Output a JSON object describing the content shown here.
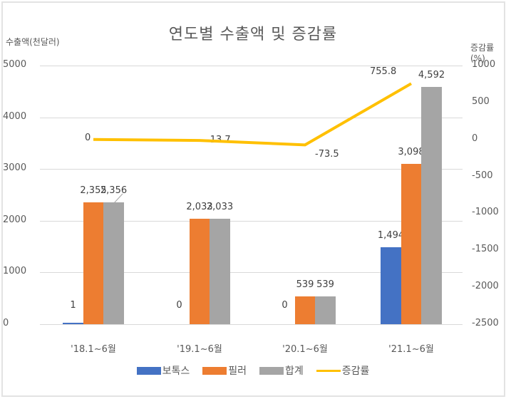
{
  "chart_data": {
    "type": "bar",
    "combo": "bar + line (secondary axis)",
    "title": "연도별 수출액 및 증감률",
    "xlabel": "",
    "ylabel": "수출액(천달러)",
    "y2label": "증감률(%)",
    "ylim": [
      0,
      5000
    ],
    "y2lim": [
      -2500,
      1000
    ],
    "yticks": [
      "5000",
      "4000",
      "3000",
      "2000",
      "1000",
      "0"
    ],
    "y2ticks": [
      "1000",
      "500",
      "0",
      "-500",
      "-1000",
      "-1500",
      "-2000",
      "-2500"
    ],
    "grid": true,
    "legend_position": "bottom",
    "categories": [
      "'18.1~6월",
      "'19.1~6월",
      "'20.1~6월",
      "'21.1~6월"
    ],
    "series": [
      {
        "name": "보톡스",
        "type": "bar",
        "color": "#4472C4",
        "values": [
          1,
          0,
          0,
          1494
        ],
        "labels": [
          "1",
          "0",
          "0",
          "1,494"
        ]
      },
      {
        "name": "필러",
        "type": "bar",
        "color": "#ED7D31",
        "values": [
          2355,
          2033,
          539,
          3098
        ],
        "labels": [
          "2,355",
          "2,033",
          "539",
          "3,098"
        ]
      },
      {
        "name": "합계",
        "type": "bar",
        "color": "#A5A5A5",
        "values": [
          2356,
          2033,
          539,
          4592
        ],
        "labels": [
          "2,356",
          "2,033",
          "539",
          "4,592"
        ]
      },
      {
        "name": "증감률",
        "type": "line",
        "axis": "secondary",
        "color": "#FFC000",
        "values": [
          0,
          -13.7,
          -73.5,
          755.8
        ],
        "labels": [
          "0",
          "-13.7",
          "-73.5",
          "755.8"
        ]
      }
    ]
  }
}
